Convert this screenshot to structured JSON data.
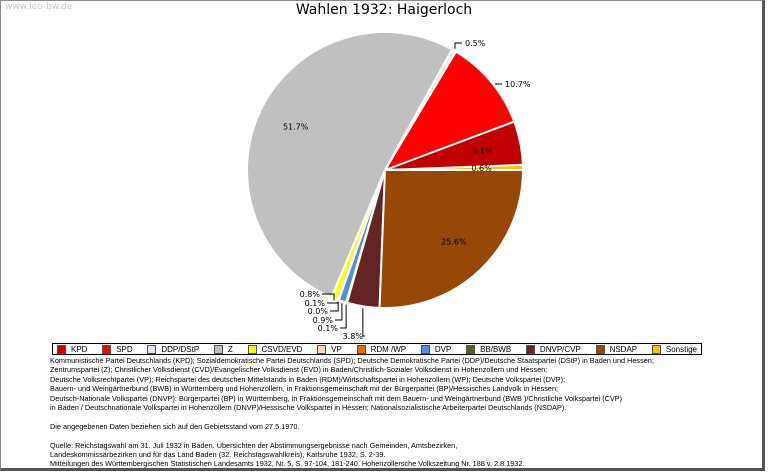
{
  "watermark": "www.leo-bw.de",
  "chart_data": {
    "type": "pie",
    "title": "Wahlen 1932: Haigerloch",
    "categories": [
      "KPD",
      "SPD",
      "DDP/DStP",
      "Z",
      "CSVD/EVD",
      "VP",
      "RDM /WP",
      "DVP",
      "BB/BWB",
      "DNVP/CVP",
      "NSDAP",
      "Sonstige"
    ],
    "values": [
      5.1,
      10.7,
      0.5,
      51.7,
      0.8,
      0.1,
      0.0,
      0.9,
      0.1,
      3.8,
      25.6,
      0.6
    ],
    "labels": [
      "5.1%",
      "10.7%",
      "0.5%",
      "51.7%",
      "0.8%",
      "0.1%",
      "0.0%",
      "0.9%",
      "0.1%",
      "3.8%",
      "25.6%",
      "0.6%"
    ],
    "colors": [
      "#c00000",
      "#ff0000",
      "#dce6f2",
      "#c0c0c0",
      "#ffff00",
      "#fcd5b4",
      "#e46c0a",
      "#4f8fdc",
      "#4f6228",
      "#632523",
      "#974806",
      "#ffc000"
    ],
    "legend": "bottom"
  },
  "notes": [
    "Kommunistische Partei Deutschlands (KPD); Sozialdemokratische Partei Deutschlands (SPD); Deutsche Demokratische Partei (DDP)/Deutsche Staatspartei (DStP) in Baden und Hessen;",
    "Zentrumspartei (Z); Christlicher Volksdienst (CVD)/Evangelischer Volksdienst (EVD) in Baden/Christlich-Sozialer Volksdienst in Hohenzollern und Hessen;",
    "Deutsche Volksrechtpartei (VP); Reichspartei des deutschen Mittelstands in Baden (RDM)/Wirtschaftspartei in Hohenzollern (WP); Deutsche Volkspartei (DVP);",
    "Bauern- und Weingärtnerbund (BWB) in Württemberg und Hohenzollern, in Fraktionsgemeinschaft mit der Bürgerpartei (BP)/Hessisches Landvolk in Hessen;",
    "Deutsch-Nationale Volkspartei (DNVP): Bürgerpartei (BP) in Württemberg, in Fraktionsgemeinschaft mit dem Bauern- und Weingärtnerbund (BWB )/Christliche Volkspartei (CVP)",
    "in Baden / Deutschnationale Volkspartei in Hohenzollern (DNVP)/Hessische Volkspartei in Hessen; Nationalsozialistische Arbeiterpartei Deutschlands (NSDAP)."
  ],
  "date_note": "Die angegebenen Daten beziehen sich auf den Gebietsstand vom 27.5.1970.",
  "source": [
    "Quelle: Reichstagswahl am 31. Juli 1932 in Baden. Übersichten der Abstimmungsergebnisse nach Gemeinden, Amtsbezirken,",
    "Landeskommissärbezirken und für das Land Baden (32. Reichstagswahlkreis), Karlsruhe 1932, S. 2-39.",
    "Mitteilungen des Württembergischen Statistischen Landesamts 1932, Nr. 5, S. 97-104, 181-240. Hohenzollersche Volkszeitung Nr. 188 v. 2.8.1932."
  ]
}
